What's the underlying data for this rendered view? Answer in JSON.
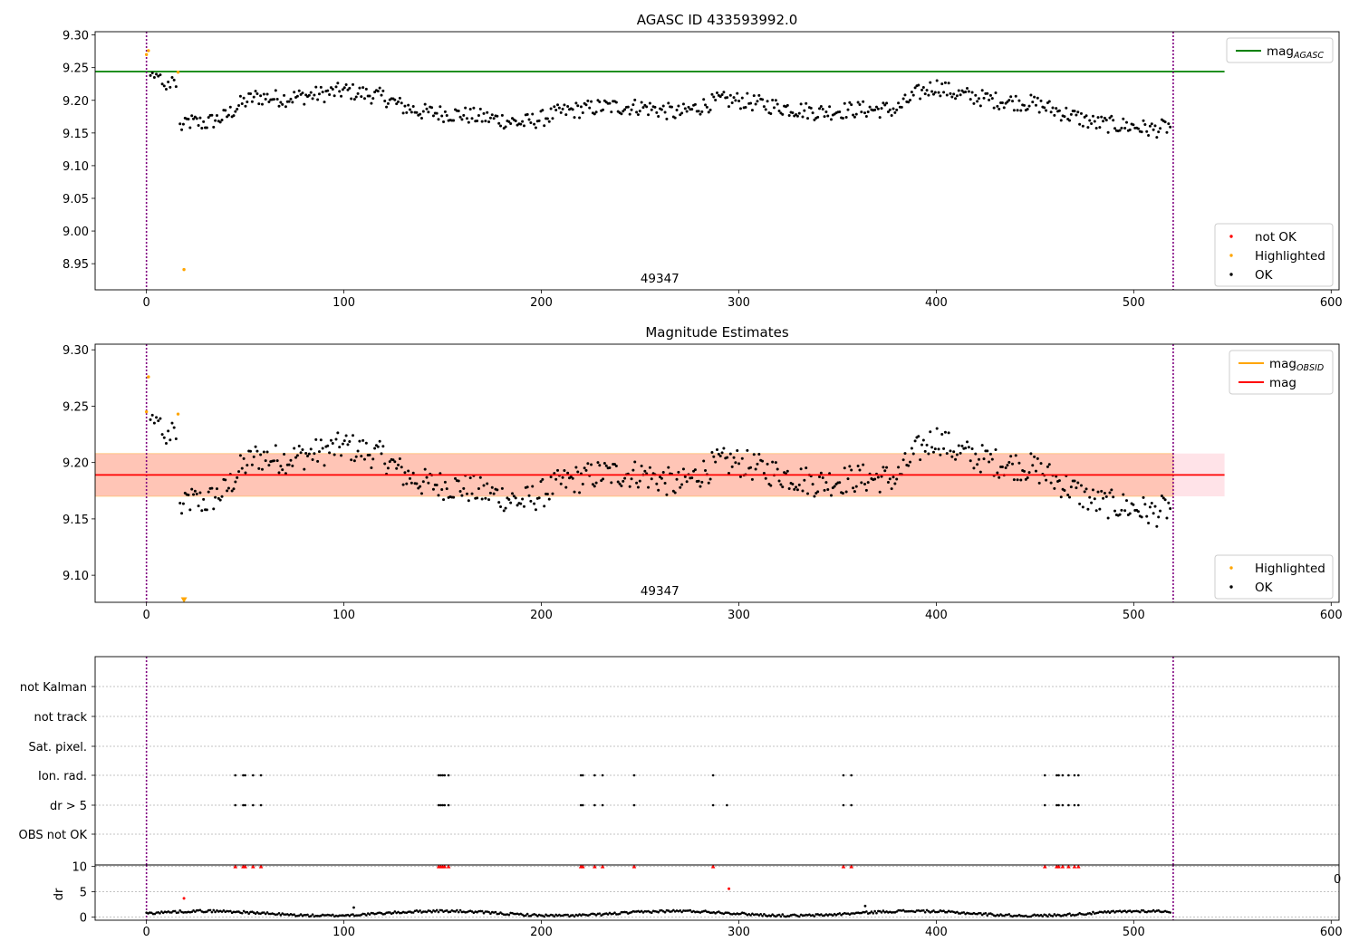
{
  "chart_data": [
    {
      "type": "scatter",
      "title": "AGASC ID 433593992.0",
      "xlim": [
        -26,
        604
      ],
      "ylim": [
        8.91,
        9.305
      ],
      "xticks": [
        0,
        100,
        200,
        300,
        400,
        500,
        600
      ],
      "yticks": [
        8.95,
        9.0,
        9.05,
        9.1,
        9.15,
        9.2,
        9.25,
        9.3
      ],
      "ytick_labels": [
        "8.95",
        "9.00",
        "9.05",
        "9.10",
        "9.15",
        "9.20",
        "9.25",
        "9.30"
      ],
      "obsid_label": "49347",
      "obsid_label_x": 260,
      "obs_boundaries": [
        0,
        520
      ],
      "hline": {
        "name": "mag_AGASC",
        "y": 9.244,
        "x": [
          -26,
          546
        ],
        "color": "#008000"
      },
      "legend_top": [
        {
          "label": "mag",
          "sub": "AGASC",
          "color": "#008000",
          "kind": "line"
        }
      ],
      "legend_bottom": [
        {
          "label": "not OK",
          "color": "#ff0000",
          "kind": "dot"
        },
        {
          "label": "Highlighted",
          "color": "#ffa500",
          "kind": "dot"
        },
        {
          "label": "OK",
          "color": "#000000",
          "kind": "dot"
        }
      ],
      "highlighted_points": [
        [
          0,
          9.27
        ],
        [
          1,
          9.276
        ],
        [
          16,
          9.243
        ],
        [
          19,
          8.941
        ]
      ]
    },
    {
      "type": "scatter",
      "title": "Magnitude Estimates",
      "xlim": [
        -26,
        604
      ],
      "ylim": [
        9.076,
        9.305
      ],
      "xticks": [
        0,
        100,
        200,
        300,
        400,
        500,
        600
      ],
      "yticks": [
        9.1,
        9.15,
        9.2,
        9.25,
        9.3
      ],
      "ytick_labels": [
        "9.10",
        "9.15",
        "9.20",
        "9.25",
        "9.30"
      ],
      "obsid_label": "49347",
      "obsid_label_x": 260,
      "obs_boundaries": [
        0,
        520
      ],
      "mag_line": {
        "y": 9.189,
        "x": [
          -26,
          546
        ],
        "color": "#ff0000"
      },
      "band_full": {
        "y": [
          9.17,
          9.208
        ],
        "x": [
          -26,
          546
        ],
        "color": "#ffc0cb"
      },
      "band_obsid": {
        "y": [
          9.17,
          9.208
        ],
        "x": [
          -26,
          520
        ],
        "color": "#ffa07a"
      },
      "legend_top": [
        {
          "label": "mag",
          "sub": "OBSID",
          "color": "#ffa500",
          "kind": "line"
        },
        {
          "label": "mag",
          "sub": "",
          "color": "#ff0000",
          "kind": "line"
        }
      ],
      "legend_bottom": [
        {
          "label": "Highlighted",
          "color": "#ffa500",
          "kind": "dot"
        },
        {
          "label": "OK",
          "color": "#000000",
          "kind": "dot"
        }
      ],
      "highlighted_points": [
        [
          0,
          9.245
        ],
        [
          1,
          9.276
        ],
        [
          16,
          9.243
        ]
      ],
      "offscale_marker": {
        "x": 19,
        "y": 9.078
      }
    },
    {
      "type": "scatter",
      "title": "",
      "xlim": [
        -26,
        604
      ],
      "xticks": [
        0,
        100,
        200,
        300,
        400,
        500,
        600
      ],
      "flag_rows": [
        "not Kalman",
        "not track",
        "Sat. pixel.",
        "Ion. rad.",
        "dr > 5",
        "OBS not OK"
      ],
      "obs_boundaries": [
        0,
        520
      ],
      "ion_rad_x": [
        45,
        49,
        50,
        54,
        58,
        148,
        149,
        150,
        151,
        153,
        220,
        221,
        227,
        231,
        247,
        287,
        353,
        357,
        455,
        461,
        462,
        464,
        467,
        470,
        472
      ],
      "dr5_x": [
        45,
        49,
        50,
        54,
        58,
        148,
        149,
        150,
        151,
        153,
        220,
        221,
        227,
        231,
        247,
        287,
        294,
        353,
        357,
        455,
        461,
        462,
        464,
        467,
        470,
        472
      ],
      "dr_red_top_x": [
        45,
        49,
        50,
        54,
        58,
        148,
        149,
        150,
        151,
        153,
        220,
        221,
        227,
        231,
        247,
        287,
        353,
        357,
        455,
        461,
        462,
        464,
        467,
        470,
        472
      ],
      "dr_red_extra": [
        [
          19,
          3.7
        ],
        [
          295,
          5.6
        ]
      ],
      "dr_black_extra": [
        [
          364,
          2.2
        ],
        [
          105,
          1.9
        ]
      ],
      "dr_ylabel": "dr",
      "dr_yticks": [
        0,
        5,
        10
      ],
      "dr_ylim": [
        -0.6,
        10.3
      ],
      "dr_overflow_tick": "0"
    }
  ]
}
